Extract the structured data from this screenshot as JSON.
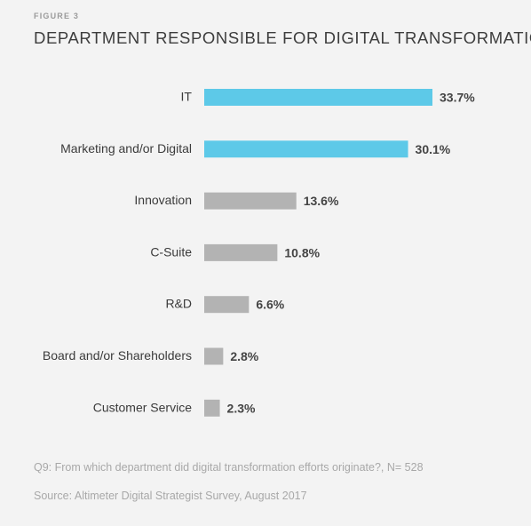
{
  "figure_label": "FIGURE 3",
  "notes": {
    "question": "Q9: From which department did digital transformation efforts originate?, N= 528",
    "source": "Source: Altimeter Digital Strategist Survey, August 2017"
  },
  "chart_data": {
    "type": "bar",
    "orientation": "horizontal",
    "title": "DEPARTMENT RESPONSIBLE FOR DIGITAL TRANSFORMATION",
    "categories": [
      "IT",
      "Marketing and/or Digital",
      "Innovation",
      "C-Suite",
      "R&D",
      "Board and/or Shareholders",
      "Customer Service"
    ],
    "values": [
      33.7,
      30.1,
      13.6,
      10.8,
      6.6,
      2.8,
      2.3
    ],
    "value_labels": [
      "33.7%",
      "30.1%",
      "13.6%",
      "10.8%",
      "6.6%",
      "2.8%",
      "2.3%"
    ],
    "unit": "%",
    "xlim": [
      0,
      33.7
    ],
    "grid": false,
    "legend": "none",
    "colors": {
      "highlight": "#5dc9e8",
      "default": "#b3b3b3"
    },
    "highlighted": [
      true,
      true,
      false,
      false,
      false,
      false,
      false
    ]
  }
}
